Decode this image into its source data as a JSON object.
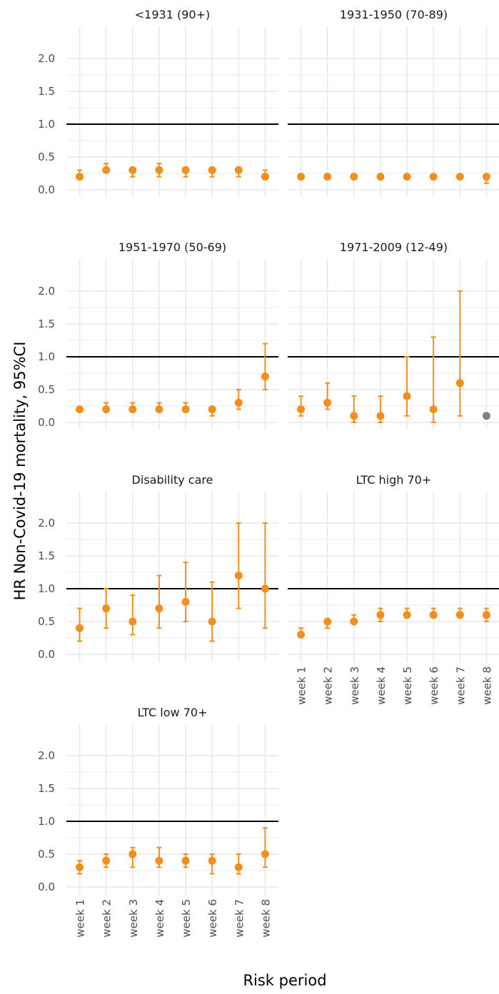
{
  "chart_data": {
    "type": "scatter",
    "style": "point estimates with error bars, faceted panels",
    "xlabel": "Risk period",
    "ylabel": "HR Non-Covid-19 mortality, 95%CI",
    "categories": [
      "week 1",
      "week 2",
      "week 3",
      "week 4",
      "week 5",
      "week 6",
      "week 7",
      "week 8"
    ],
    "ylim": [
      0,
      2.1
    ],
    "yticks": [
      0.0,
      0.5,
      1.0,
      1.5,
      2.0
    ],
    "ytick_labels": [
      "0.0",
      "0.5",
      "1.0",
      "1.5",
      "2.0"
    ],
    "reference_line": 1.0,
    "grid": true,
    "colors": {
      "main": "#F28E1C",
      "muted": "#808080",
      "reference": "#000000",
      "grid": "#EBEBEB"
    },
    "panels": [
      {
        "title": "<1931 (90+)",
        "estimate": [
          0.2,
          0.3,
          0.3,
          0.3,
          0.3,
          0.3,
          0.3,
          0.2
        ],
        "lower": [
          0.2,
          0.3,
          0.2,
          0.2,
          0.2,
          0.2,
          0.2,
          0.2
        ],
        "upper": [
          0.3,
          0.4,
          0.3,
          0.4,
          0.3,
          0.3,
          0.3,
          0.3
        ],
        "muted": [
          false,
          false,
          false,
          false,
          false,
          false,
          false,
          false
        ]
      },
      {
        "title": "1931-1950 (70-89)",
        "estimate": [
          0.2,
          0.2,
          0.2,
          0.2,
          0.2,
          0.2,
          0.2,
          0.2
        ],
        "lower": [
          0.2,
          0.2,
          0.2,
          0.2,
          0.2,
          0.2,
          0.2,
          0.1
        ],
        "upper": [
          0.2,
          0.2,
          0.2,
          0.2,
          0.2,
          0.2,
          0.2,
          0.2
        ],
        "muted": [
          false,
          false,
          false,
          false,
          false,
          false,
          false,
          false
        ]
      },
      {
        "title": "1951-1970 (50-69)",
        "estimate": [
          0.2,
          0.2,
          0.2,
          0.2,
          0.2,
          0.2,
          0.3,
          0.7
        ],
        "lower": [
          0.2,
          0.2,
          0.2,
          0.2,
          0.2,
          0.1,
          0.2,
          0.5
        ],
        "upper": [
          0.2,
          0.3,
          0.3,
          0.3,
          0.3,
          0.2,
          0.5,
          1.2
        ],
        "muted": [
          false,
          false,
          false,
          false,
          false,
          false,
          false,
          false
        ]
      },
      {
        "title": "1971-2009 (12-49)",
        "estimate": [
          0.2,
          0.3,
          0.1,
          0.1,
          0.4,
          0.2,
          0.6,
          0.1
        ],
        "lower": [
          0.1,
          0.2,
          0.0,
          0.0,
          0.1,
          0.0,
          0.1,
          0.1
        ],
        "upper": [
          0.4,
          0.6,
          0.4,
          0.4,
          1.0,
          1.3,
          2.0,
          0.1
        ],
        "muted": [
          false,
          false,
          false,
          false,
          false,
          false,
          false,
          true
        ]
      },
      {
        "title": "Disability care",
        "estimate": [
          0.4,
          0.7,
          0.5,
          0.7,
          0.8,
          0.5,
          1.2,
          1.0
        ],
        "lower": [
          0.2,
          0.4,
          0.3,
          0.4,
          0.5,
          0.2,
          0.7,
          0.4
        ],
        "upper": [
          0.7,
          1.0,
          0.9,
          1.2,
          1.4,
          1.1,
          2.0,
          2.0
        ],
        "muted": [
          false,
          false,
          false,
          false,
          false,
          false,
          false,
          false
        ]
      },
      {
        "title": "LTC high 70+",
        "estimate": [
          0.3,
          0.5,
          0.5,
          0.6,
          0.6,
          0.6,
          0.6,
          0.6
        ],
        "lower": [
          0.3,
          0.4,
          0.5,
          0.5,
          0.6,
          0.6,
          0.6,
          0.5
        ],
        "upper": [
          0.4,
          0.5,
          0.6,
          0.7,
          0.7,
          0.7,
          0.7,
          0.7
        ],
        "muted": [
          false,
          false,
          false,
          false,
          false,
          false,
          false,
          false
        ]
      },
      {
        "title": "LTC low 70+",
        "estimate": [
          0.3,
          0.4,
          0.5,
          0.4,
          0.4,
          0.4,
          0.3,
          0.5
        ],
        "lower": [
          0.2,
          0.3,
          0.3,
          0.3,
          0.3,
          0.2,
          0.2,
          0.3
        ],
        "upper": [
          0.4,
          0.5,
          0.6,
          0.6,
          0.5,
          0.5,
          0.5,
          0.9
        ],
        "muted": [
          false,
          false,
          false,
          false,
          false,
          false,
          false,
          false
        ]
      }
    ]
  }
}
